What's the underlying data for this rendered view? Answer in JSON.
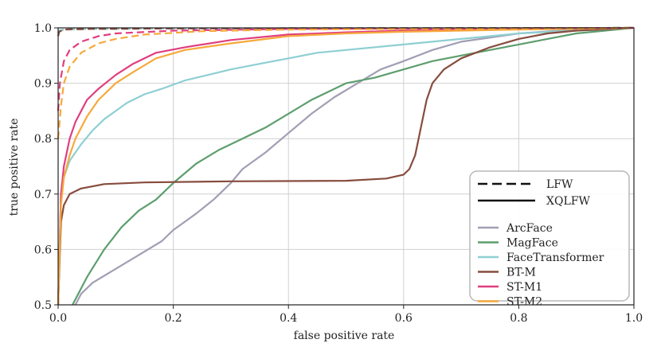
{
  "chart_data": {
    "type": "line",
    "title": "",
    "xlabel": "false positive rate",
    "ylabel": "true positive rate",
    "xlim": [
      0,
      1
    ],
    "ylim": [
      0.5,
      1
    ],
    "xticks": [
      "0.0",
      "0.2",
      "0.4",
      "0.6",
      "0.8",
      "1.0"
    ],
    "yticks": [
      "0.5",
      "0.6",
      "0.7",
      "0.8",
      "0.9",
      "1.0"
    ],
    "grid": true,
    "legend_position": "bottom-right",
    "style_legend": [
      {
        "label": "LFW",
        "dash": "dashed"
      },
      {
        "label": "XQLFW",
        "dash": "solid"
      }
    ],
    "series": [
      {
        "name": "ArcFace",
        "color": "#a29eb4",
        "xqlfw": [
          [
            0.03,
            0.5
          ],
          [
            0.04,
            0.52
          ],
          [
            0.06,
            0.54
          ],
          [
            0.1,
            0.565
          ],
          [
            0.14,
            0.59
          ],
          [
            0.18,
            0.615
          ],
          [
            0.2,
            0.635
          ],
          [
            0.22,
            0.65
          ],
          [
            0.24,
            0.665
          ],
          [
            0.27,
            0.69
          ],
          [
            0.3,
            0.72
          ],
          [
            0.32,
            0.745
          ],
          [
            0.36,
            0.775
          ],
          [
            0.4,
            0.81
          ],
          [
            0.44,
            0.845
          ],
          [
            0.48,
            0.875
          ],
          [
            0.52,
            0.9
          ],
          [
            0.56,
            0.925
          ],
          [
            0.6,
            0.94
          ],
          [
            0.65,
            0.96
          ],
          [
            0.7,
            0.975
          ],
          [
            0.8,
            0.99
          ],
          [
            0.9,
            0.997
          ],
          [
            1.0,
            1.0
          ]
        ],
        "lfw": [
          [
            0.0,
            0.99
          ],
          [
            0.002,
            0.994
          ],
          [
            0.01,
            0.997
          ],
          [
            0.05,
            0.998
          ],
          [
            0.2,
            0.999
          ],
          [
            1.0,
            1.0
          ]
        ]
      },
      {
        "name": "MagFace",
        "color": "#5d9e6e",
        "xqlfw": [
          [
            0.025,
            0.5
          ],
          [
            0.05,
            0.55
          ],
          [
            0.08,
            0.6
          ],
          [
            0.11,
            0.64
          ],
          [
            0.14,
            0.67
          ],
          [
            0.17,
            0.69
          ],
          [
            0.2,
            0.72
          ],
          [
            0.24,
            0.755
          ],
          [
            0.28,
            0.78
          ],
          [
            0.32,
            0.8
          ],
          [
            0.36,
            0.82
          ],
          [
            0.4,
            0.845
          ],
          [
            0.44,
            0.87
          ],
          [
            0.5,
            0.9
          ],
          [
            0.55,
            0.91
          ],
          [
            0.6,
            0.925
          ],
          [
            0.65,
            0.94
          ],
          [
            0.7,
            0.95
          ],
          [
            0.75,
            0.96
          ],
          [
            0.8,
            0.97
          ],
          [
            0.85,
            0.98
          ],
          [
            0.9,
            0.99
          ],
          [
            0.95,
            0.995
          ],
          [
            1.0,
            1.0
          ]
        ],
        "lfw": [
          [
            0.0,
            0.99
          ],
          [
            0.002,
            0.995
          ],
          [
            0.01,
            0.997
          ],
          [
            0.05,
            0.998
          ],
          [
            0.2,
            0.999
          ],
          [
            1.0,
            1.0
          ]
        ]
      },
      {
        "name": "FaceTransformer",
        "color": "#8ecfd3",
        "xqlfw": [
          [
            0.0,
            0.5
          ],
          [
            0.005,
            0.7
          ],
          [
            0.01,
            0.73
          ],
          [
            0.02,
            0.76
          ],
          [
            0.04,
            0.79
          ],
          [
            0.06,
            0.815
          ],
          [
            0.08,
            0.835
          ],
          [
            0.1,
            0.85
          ],
          [
            0.12,
            0.865
          ],
          [
            0.15,
            0.88
          ],
          [
            0.18,
            0.89
          ],
          [
            0.22,
            0.905
          ],
          [
            0.26,
            0.915
          ],
          [
            0.3,
            0.925
          ],
          [
            0.35,
            0.935
          ],
          [
            0.4,
            0.945
          ],
          [
            0.45,
            0.955
          ],
          [
            0.5,
            0.96
          ],
          [
            0.6,
            0.97
          ],
          [
            0.7,
            0.98
          ],
          [
            0.8,
            0.99
          ],
          [
            0.9,
            0.995
          ],
          [
            1.0,
            1.0
          ]
        ],
        "lfw": [
          [
            0.0,
            0.99
          ],
          [
            0.002,
            0.995
          ],
          [
            0.01,
            0.997
          ],
          [
            0.05,
            0.998
          ],
          [
            0.2,
            0.999
          ],
          [
            1.0,
            1.0
          ]
        ]
      },
      {
        "name": "BT-M",
        "color": "#874c3d",
        "xqlfw": [
          [
            0.0,
            0.5
          ],
          [
            0.005,
            0.65
          ],
          [
            0.01,
            0.68
          ],
          [
            0.02,
            0.7
          ],
          [
            0.04,
            0.71
          ],
          [
            0.08,
            0.718
          ],
          [
            0.15,
            0.721
          ],
          [
            0.3,
            0.723
          ],
          [
            0.5,
            0.724
          ],
          [
            0.57,
            0.728
          ],
          [
            0.6,
            0.735
          ],
          [
            0.61,
            0.745
          ],
          [
            0.62,
            0.77
          ],
          [
            0.63,
            0.82
          ],
          [
            0.64,
            0.87
          ],
          [
            0.65,
            0.9
          ],
          [
            0.67,
            0.925
          ],
          [
            0.7,
            0.945
          ],
          [
            0.75,
            0.965
          ],
          [
            0.8,
            0.98
          ],
          [
            0.85,
            0.99
          ],
          [
            0.9,
            0.995
          ],
          [
            1.0,
            1.0
          ]
        ],
        "lfw": [
          [
            0.0,
            0.985
          ],
          [
            0.002,
            0.993
          ],
          [
            0.01,
            0.997
          ],
          [
            0.05,
            0.998
          ],
          [
            0.2,
            0.999
          ],
          [
            1.0,
            1.0
          ]
        ]
      },
      {
        "name": "ST-M1",
        "color": "#e03e7f",
        "xqlfw": [
          [
            0.0,
            0.5
          ],
          [
            0.005,
            0.7
          ],
          [
            0.01,
            0.75
          ],
          [
            0.02,
            0.8
          ],
          [
            0.03,
            0.83
          ],
          [
            0.05,
            0.87
          ],
          [
            0.07,
            0.89
          ],
          [
            0.1,
            0.915
          ],
          [
            0.13,
            0.935
          ],
          [
            0.17,
            0.955
          ],
          [
            0.22,
            0.965
          ],
          [
            0.3,
            0.978
          ],
          [
            0.4,
            0.988
          ],
          [
            0.5,
            0.992
          ],
          [
            0.6,
            0.995
          ],
          [
            0.8,
            0.998
          ],
          [
            1.0,
            1.0
          ]
        ],
        "lfw": [
          [
            0.0,
            0.85
          ],
          [
            0.003,
            0.9
          ],
          [
            0.01,
            0.94
          ],
          [
            0.02,
            0.96
          ],
          [
            0.04,
            0.975
          ],
          [
            0.07,
            0.985
          ],
          [
            0.1,
            0.99
          ],
          [
            0.2,
            0.995
          ],
          [
            0.4,
            0.998
          ],
          [
            1.0,
            1.0
          ]
        ]
      },
      {
        "name": "ST-M2",
        "color": "#f6a93b",
        "xqlfw": [
          [
            0.0,
            0.5
          ],
          [
            0.005,
            0.68
          ],
          [
            0.01,
            0.73
          ],
          [
            0.02,
            0.77
          ],
          [
            0.03,
            0.8
          ],
          [
            0.05,
            0.84
          ],
          [
            0.07,
            0.87
          ],
          [
            0.1,
            0.9
          ],
          [
            0.13,
            0.92
          ],
          [
            0.17,
            0.945
          ],
          [
            0.22,
            0.96
          ],
          [
            0.3,
            0.972
          ],
          [
            0.4,
            0.985
          ],
          [
            0.5,
            0.99
          ],
          [
            0.6,
            0.993
          ],
          [
            0.8,
            0.997
          ],
          [
            1.0,
            1.0
          ]
        ],
        "lfw": [
          [
            0.0,
            0.8
          ],
          [
            0.005,
            0.86
          ],
          [
            0.01,
            0.9
          ],
          [
            0.02,
            0.93
          ],
          [
            0.04,
            0.955
          ],
          [
            0.07,
            0.972
          ],
          [
            0.1,
            0.98
          ],
          [
            0.15,
            0.988
          ],
          [
            0.25,
            0.994
          ],
          [
            0.4,
            0.997
          ],
          [
            1.0,
            1.0
          ]
        ]
      }
    ]
  }
}
